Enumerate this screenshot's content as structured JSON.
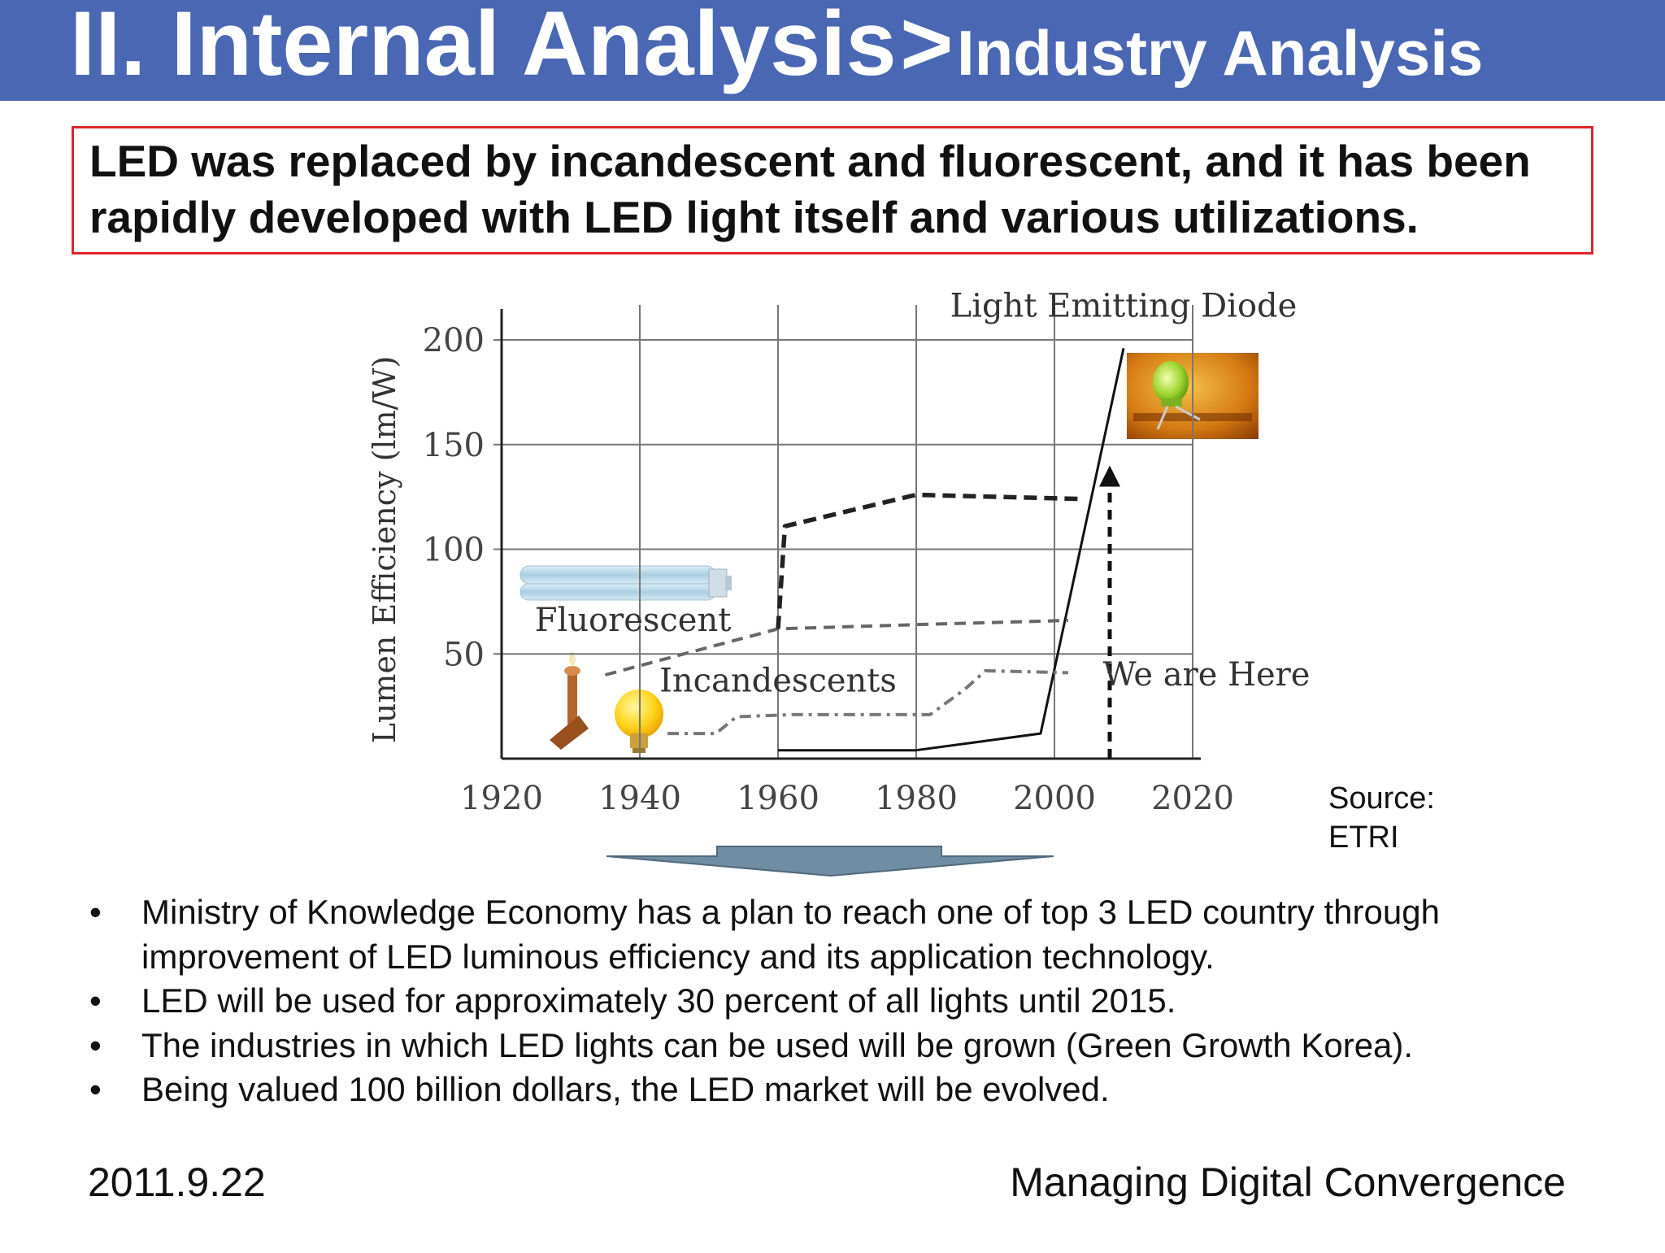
{
  "header": {
    "main_title": "II. Internal Analysis",
    "separator": ">",
    "subtitle": "Industry Analysis",
    "bar_color": "#4a67b4"
  },
  "headline": {
    "text": "LED was replaced by incandescent and fluorescent, and it has been rapidly developed with LED light itself and various utilizations.",
    "border_color": "#e0262b"
  },
  "chart_data": {
    "type": "line",
    "title": "",
    "xlabel": "",
    "ylabel": "Lumen Efficiency (lm/W)",
    "xlim": [
      1920,
      2020
    ],
    "ylim": [
      0,
      200
    ],
    "x_ticks": [
      "1920",
      "1940",
      "1960",
      "1980",
      "2000",
      "2020"
    ],
    "y_ticks": [
      "200",
      "150",
      "100",
      "50"
    ],
    "grid": true,
    "series": [
      {
        "name": "Light Emitting Diode",
        "style": "solid",
        "color": "#111111",
        "points": [
          [
            1960,
            4
          ],
          [
            1980,
            4
          ],
          [
            1998,
            12
          ],
          [
            2010,
            196
          ]
        ]
      },
      {
        "name": "Fluorescent",
        "style": "dashed",
        "color": "#555555",
        "points": [
          [
            1935,
            40
          ],
          [
            1960,
            62
          ],
          [
            1980,
            64
          ],
          [
            2002,
            66
          ]
        ]
      },
      {
        "name": "",
        "style": "bold-dashed",
        "color": "#222222",
        "points": [
          [
            1960,
            62
          ],
          [
            1961,
            111
          ],
          [
            1980,
            126
          ],
          [
            2004,
            124
          ]
        ]
      },
      {
        "name": "Incandescents",
        "style": "dash-dot",
        "color": "#777777",
        "points": [
          [
            1944,
            12
          ],
          [
            1951,
            12
          ],
          [
            1954,
            20
          ],
          [
            1962,
            21
          ],
          [
            1982,
            21
          ],
          [
            1987,
            33
          ],
          [
            1990,
            42
          ],
          [
            2002,
            41
          ]
        ]
      }
    ],
    "annotations": [
      {
        "text": "Light Emitting Diode",
        "x": 2010,
        "y": 211
      },
      {
        "text": "Fluorescent",
        "x": 1939,
        "y": 61
      },
      {
        "text": "Incandescents",
        "x": 1960,
        "y": 32
      },
      {
        "text": "We are Here",
        "x": 2022,
        "y": 35
      }
    ],
    "markers": [
      {
        "type": "dashed-arrow",
        "x": 2008,
        "y_from": 0,
        "y_to": 140
      }
    ]
  },
  "source": {
    "line1": "Source:",
    "line2": "ETRI"
  },
  "bullets": [
    "Ministry of Knowledge Economy has a plan to reach one of top 3 LED country through improvement of LED luminous efficiency and its application technology.",
    "LED will be used for approximately 30 percent of all lights until 2015.",
    "The industries in which LED lights can be used will be grown (Green Growth Korea).",
    "Being valued 100 billion dollars, the LED market will be evolved."
  ],
  "bullet_symbol": "•",
  "footer": {
    "date": "2011.9.22",
    "course": "Managing Digital Convergence"
  }
}
